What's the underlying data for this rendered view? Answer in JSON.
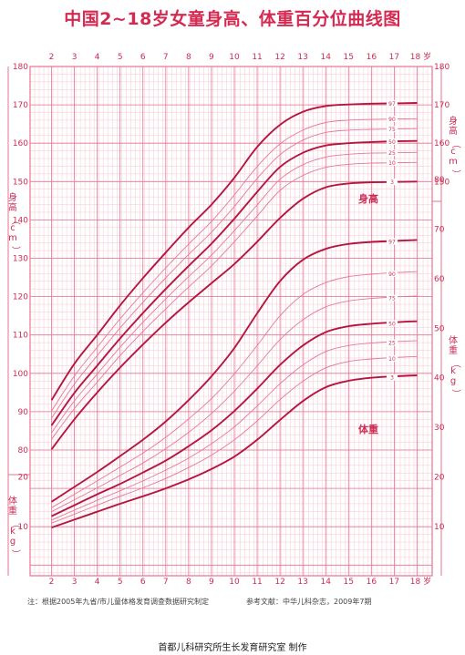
{
  "title": "中国2~18岁女童身高、体重百分位曲线图",
  "note_left": "注：根据2005年九省/市儿童体格发育调查数据研究制定",
  "note_right": "参考文献：中华儿科杂志，2009年7期",
  "maker": "首都儿科研究所生长发育研究室  制作",
  "colors": {
    "grid_major": "#e8738f",
    "grid_minor": "#f7c6d2",
    "curve_main": "#b5163f",
    "curve_light": "#e6789a",
    "text": "#cc2b52"
  },
  "chart_data": [
    {
      "type": "line",
      "section_label": "身高",
      "ylabel": "身高（cm）",
      "x_unit": "岁",
      "x": [
        2,
        3,
        4,
        5,
        6,
        7,
        8,
        9,
        10,
        11,
        12,
        13,
        14,
        15,
        16,
        17,
        18
      ],
      "ylim": [
        80,
        180
      ],
      "yticks": [
        80,
        90,
        100,
        110,
        120,
        130,
        140,
        150,
        160,
        170,
        180
      ],
      "series": [
        {
          "name": "97",
          "values": [
            93.0,
            102.5,
            110.0,
            117.7,
            124.8,
            131.5,
            138.0,
            144.0,
            151.0,
            159.0,
            164.8,
            168.2,
            169.7,
            170.1,
            170.3,
            170.4,
            170.5
          ]
        },
        {
          "name": "90",
          "values": [
            90.2,
            99.3,
            106.8,
            114.2,
            121.0,
            127.5,
            133.7,
            139.6,
            146.5,
            153.9,
            159.8,
            163.4,
            165.4,
            166.0,
            166.2,
            166.3,
            166.4
          ]
        },
        {
          "name": "75",
          "values": [
            88.3,
            97.2,
            104.6,
            111.8,
            118.5,
            124.9,
            131.0,
            136.8,
            143.5,
            150.8,
            157.0,
            160.8,
            162.8,
            163.4,
            163.6,
            163.7,
            163.8
          ]
        },
        {
          "name": "50",
          "values": [
            86.4,
            94.9,
            102.0,
            109.1,
            115.7,
            122.0,
            128.0,
            133.8,
            140.3,
            147.3,
            153.8,
            157.5,
            159.4,
            160.0,
            160.3,
            160.5,
            160.6
          ]
        },
        {
          "name": "25",
          "values": [
            84.5,
            92.8,
            99.8,
            106.8,
            113.3,
            119.4,
            125.2,
            130.8,
            137.2,
            143.9,
            150.6,
            154.4,
            156.4,
            157.1,
            157.4,
            157.5,
            157.6
          ]
        },
        {
          "name": "10",
          "values": [
            82.8,
            90.8,
            97.7,
            104.6,
            110.9,
            116.8,
            122.5,
            128.0,
            134.3,
            141.0,
            147.7,
            151.6,
            153.7,
            154.5,
            154.8,
            154.9,
            155.0
          ]
        },
        {
          "name": "3",
          "values": [
            80.2,
            88.0,
            95.0,
            101.5,
            107.5,
            113.2,
            118.5,
            123.5,
            128.5,
            134.3,
            140.5,
            145.5,
            148.5,
            149.5,
            149.8,
            149.9,
            150.0
          ]
        }
      ]
    },
    {
      "type": "line",
      "section_label": "体重",
      "ylabel": "体重（kg）",
      "x_unit": "岁",
      "x": [
        2,
        3,
        4,
        5,
        6,
        7,
        8,
        9,
        10,
        11,
        12,
        13,
        14,
        15,
        16,
        17,
        18
      ],
      "ylim": [
        5,
        80
      ],
      "yticks": [
        10,
        20,
        30,
        40,
        50,
        60,
        70,
        80
      ],
      "series": [
        {
          "name": "97",
          "values": [
            15.0,
            18.0,
            21.0,
            24.2,
            27.5,
            31.2,
            35.5,
            40.3,
            46.0,
            53.0,
            59.5,
            63.8,
            66.0,
            67.0,
            67.4,
            67.6,
            67.8
          ]
        },
        {
          "name": "90",
          "values": [
            13.8,
            16.5,
            19.2,
            22.0,
            24.8,
            28.0,
            31.7,
            35.8,
            40.8,
            46.5,
            52.5,
            56.8,
            59.2,
            60.4,
            60.9,
            61.2,
            61.4
          ]
        },
        {
          "name": "75",
          "values": [
            13.0,
            15.4,
            17.8,
            20.3,
            22.8,
            25.7,
            29.0,
            32.8,
            37.3,
            42.4,
            47.7,
            51.7,
            54.3,
            55.5,
            56.0,
            56.3,
            56.5
          ]
        },
        {
          "name": "50",
          "values": [
            12.1,
            14.3,
            16.5,
            18.6,
            20.9,
            23.3,
            26.2,
            29.4,
            33.3,
            37.8,
            42.6,
            46.5,
            49.2,
            50.4,
            50.9,
            51.2,
            51.4
          ]
        },
        {
          "name": "25",
          "values": [
            11.3,
            13.3,
            15.3,
            17.2,
            19.2,
            21.4,
            23.8,
            26.7,
            30.1,
            34.3,
            38.8,
            42.6,
            45.3,
            46.5,
            47.0,
            47.3,
            47.5
          ]
        },
        {
          "name": "10",
          "values": [
            10.7,
            12.5,
            14.3,
            16.1,
            17.8,
            19.7,
            21.9,
            24.4,
            27.5,
            31.3,
            35.6,
            39.3,
            42.0,
            43.3,
            43.8,
            44.1,
            44.3
          ]
        },
        {
          "name": "3",
          "values": [
            9.8,
            11.4,
            13.0,
            14.6,
            16.1,
            17.7,
            19.5,
            21.6,
            24.1,
            27.5,
            31.5,
            35.3,
            38.1,
            39.4,
            40.0,
            40.3,
            40.5
          ]
        }
      ]
    }
  ]
}
